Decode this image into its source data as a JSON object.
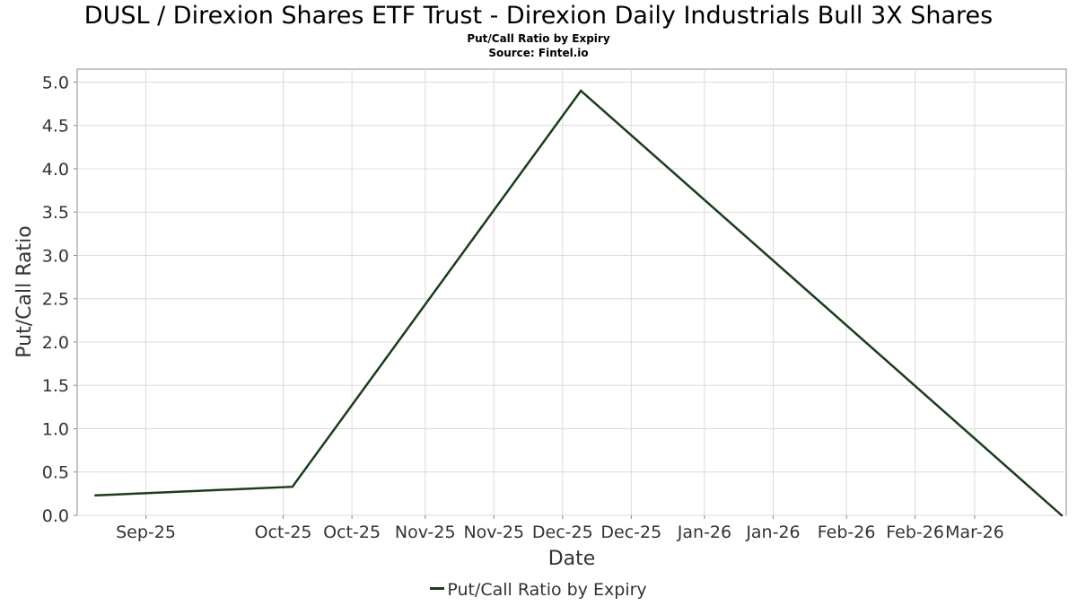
{
  "chart_data": {
    "type": "line",
    "title": "DUSL / Direxion Shares ETF Trust - Direxion Daily Industrials Bull 3X Shares",
    "subtitle": "Put/Call Ratio by Expiry",
    "source": "Source: Fintel.io",
    "xlabel": "Date",
    "ylabel": "Put/Call Ratio",
    "x_tick_labels": [
      "Sep-25",
      "Oct-25",
      "Oct-25",
      "Nov-25",
      "Nov-25",
      "Dec-25",
      "Dec-25",
      "Jan-26",
      "Jan-26",
      "Feb-26",
      "Feb-26",
      "Mar-26"
    ],
    "x_tick_dates": [
      "2025-09-01",
      "2025-10-01",
      "2025-10-16",
      "2025-11-01",
      "2025-11-16",
      "2025-12-01",
      "2025-12-16",
      "2026-01-01",
      "2026-01-16",
      "2026-02-01",
      "2026-02-16",
      "2026-03-01"
    ],
    "x_range": [
      "2025-08-17",
      "2026-03-21"
    ],
    "y_ticks": [
      "0.0",
      "0.5",
      "1.0",
      "1.5",
      "2.0",
      "2.5",
      "3.0",
      "3.5",
      "4.0",
      "4.5",
      "5.0"
    ],
    "ylim": [
      0,
      5.15
    ],
    "grid": true,
    "legend_position": "bottom-center",
    "series": [
      {
        "name": "Put/Call Ratio by Expiry",
        "color": "#1b3d1b",
        "points": [
          {
            "x": "2025-08-21",
            "y": 0.23
          },
          {
            "x": "2025-10-03",
            "y": 0.33
          },
          {
            "x": "2025-12-05",
            "y": 4.9
          },
          {
            "x": "2026-03-20",
            "y": 0.0
          }
        ]
      }
    ]
  }
}
